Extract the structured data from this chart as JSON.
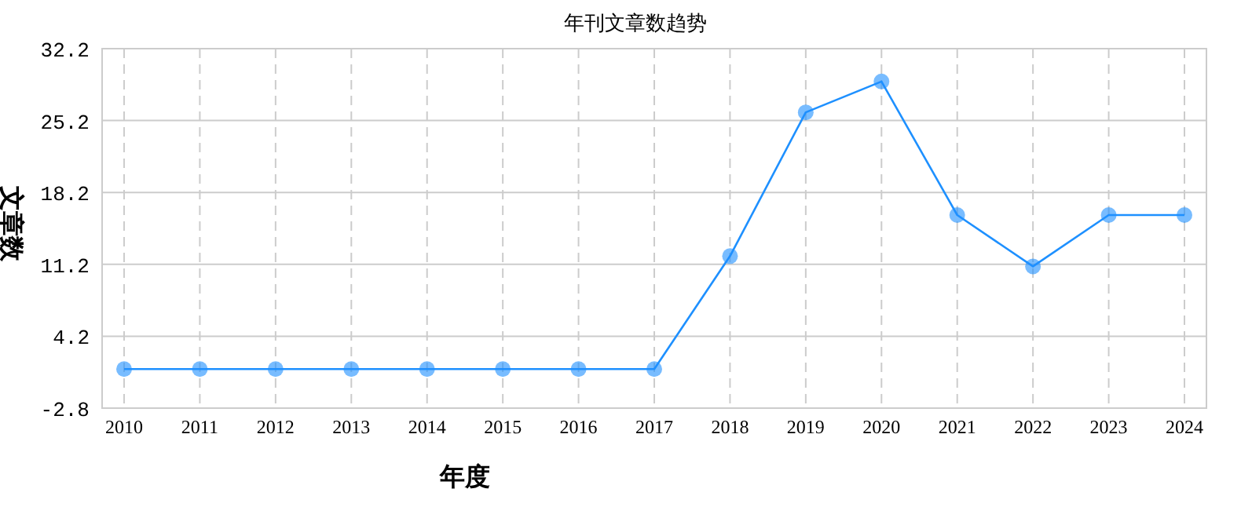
{
  "chart_data": {
    "type": "line",
    "title": "年刊文章数趋势",
    "xlabel": "年度",
    "ylabel": "文章数",
    "categories": [
      "2010",
      "2011",
      "2012",
      "2013",
      "2014",
      "2015",
      "2016",
      "2017",
      "2018",
      "2019",
      "2020",
      "2021",
      "2022",
      "2023",
      "2024"
    ],
    "series": [
      {
        "color": "#1e90ff",
        "values": [
          1,
          1,
          1,
          1,
          1,
          1,
          1,
          1,
          12,
          26,
          29,
          16,
          11,
          16,
          16
        ]
      }
    ],
    "ylim": [
      -2.8,
      32.2
    ],
    "yticks": [
      -2.8,
      4.2,
      11.2,
      18.2,
      25.2,
      32.2
    ],
    "grid": true,
    "marker": "circle",
    "line_style": "solid"
  }
}
